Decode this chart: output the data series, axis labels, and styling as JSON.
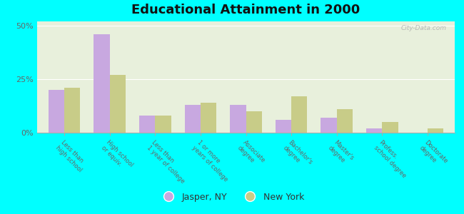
{
  "title": "Educational Attainment in 2000",
  "categories": [
    "Less than\nhigh school",
    "High school\nor equiv.",
    "Less than\n1 year of college",
    "1 or more\nyears of college",
    "Associate\ndegree",
    "Bachelor's\ndegree",
    "Master's\ndegree",
    "Profess.\nschool degree",
    "Doctorate\ndegree"
  ],
  "jasper_values": [
    20,
    46,
    8,
    13,
    13,
    6,
    7,
    2,
    0
  ],
  "ny_values": [
    21,
    27,
    8,
    14,
    10,
    17,
    11,
    5,
    2
  ],
  "jasper_color": "#c8a8e0",
  "ny_color": "#c8cc88",
  "background_color": "#00ffff",
  "plot_bg": "#e8f0dc",
  "ylim": [
    0,
    52
  ],
  "yticks": [
    0,
    25,
    50
  ],
  "ytick_labels": [
    "0%",
    "25%",
    "50%"
  ],
  "bar_width": 0.35,
  "legend_jasper": "Jasper, NY",
  "legend_ny": "New York",
  "watermark": "City-Data.com"
}
